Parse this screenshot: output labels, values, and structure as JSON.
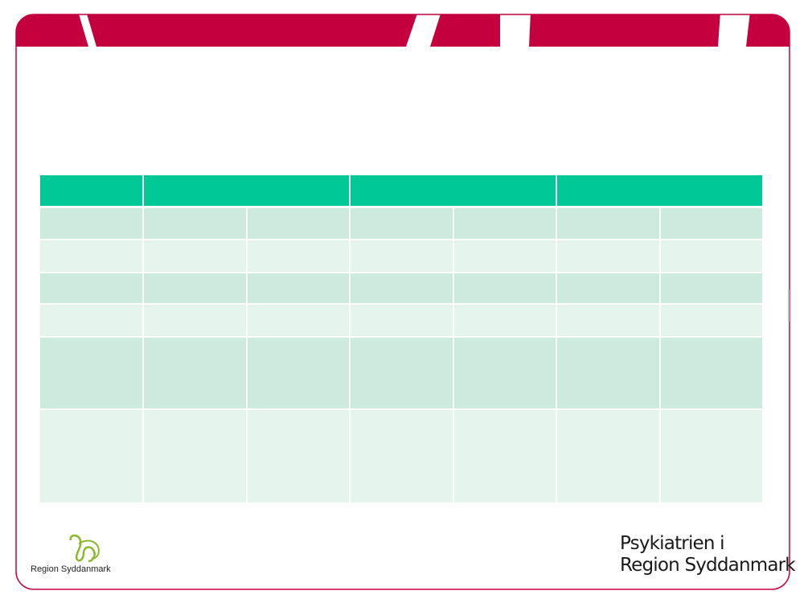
{
  "footer": {
    "logo_text": "Region Syddanmark",
    "brand_line1": "Psykiatrien i",
    "brand_line2": "Region Syddanmark"
  }
}
